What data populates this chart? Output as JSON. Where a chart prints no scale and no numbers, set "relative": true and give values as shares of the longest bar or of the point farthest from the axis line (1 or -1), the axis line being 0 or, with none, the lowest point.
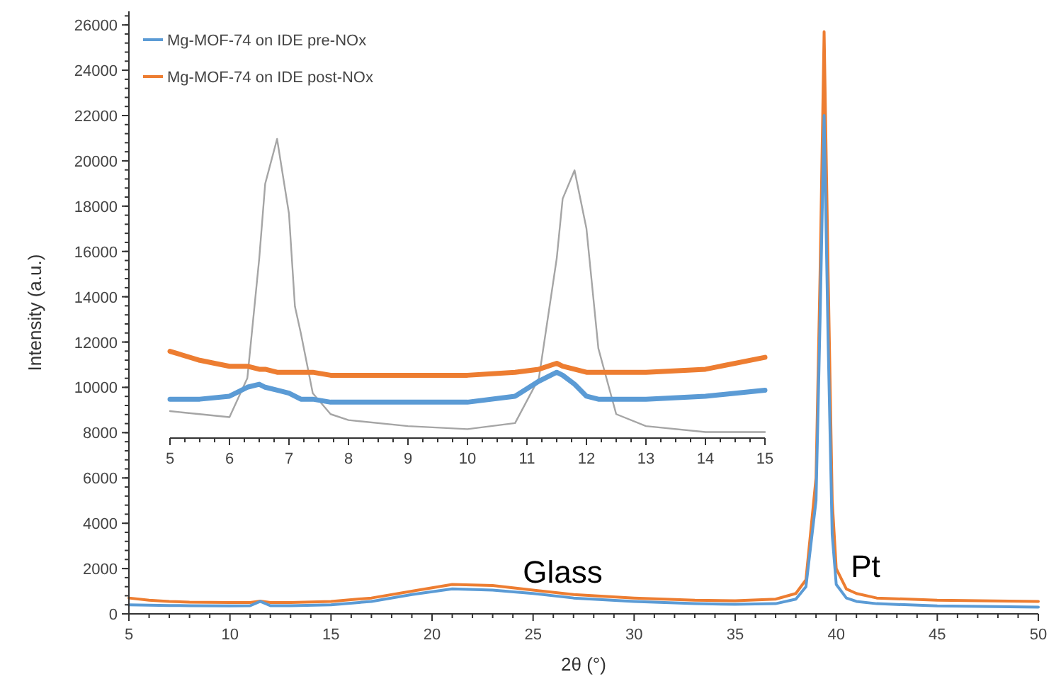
{
  "chart_data": [
    {
      "type": "line",
      "xlabel": "2θ (°)",
      "ylabel": "Intensity (a.u.)",
      "xlim": [
        5,
        50
      ],
      "ylim": [
        0,
        26600
      ],
      "xticks": [
        5,
        10,
        15,
        20,
        25,
        30,
        35,
        40,
        45,
        50
      ],
      "yticks": [
        0,
        2000,
        4000,
        6000,
        8000,
        10000,
        12000,
        14000,
        16000,
        18000,
        20000,
        22000,
        24000,
        26000
      ],
      "legend": "top left",
      "grid": false,
      "marker": "none",
      "line_style": "solid",
      "x": [
        5,
        6,
        7,
        8,
        10,
        11,
        11.5,
        12,
        13,
        15,
        17,
        19,
        21,
        23,
        25,
        27,
        30,
        33,
        35,
        37,
        38,
        38.5,
        39,
        39.2,
        39.4,
        39.6,
        39.8,
        40,
        40.5,
        41,
        42,
        45,
        50
      ],
      "series": [
        {
          "name": "Mg-MOF-74 on IDE pre-NOx",
          "color": "#5b9bd5",
          "values": [
            400,
            380,
            370,
            360,
            350,
            360,
            550,
            360,
            360,
            400,
            550,
            850,
            1100,
            1050,
            900,
            700,
            550,
            450,
            420,
            450,
            650,
            1200,
            5000,
            13000,
            22000,
            12000,
            3500,
            1300,
            700,
            550,
            450,
            350,
            300
          ]
        },
        {
          "name": "Mg-MOF-74 on IDE post-NOx",
          "color": "#ed7d31",
          "values": [
            700,
            600,
            550,
            520,
            500,
            500,
            560,
            500,
            500,
            550,
            700,
            1000,
            1300,
            1250,
            1050,
            850,
            700,
            600,
            580,
            650,
            900,
            1500,
            6000,
            15000,
            25700,
            15000,
            5000,
            2000,
            1100,
            900,
            700,
            600,
            550
          ]
        }
      ],
      "annotations": [
        "Glass",
        "Pt"
      ]
    },
    {
      "type": "line",
      "relative": true,
      "xlim": [
        5,
        15
      ],
      "xticks": [
        5,
        6,
        7,
        8,
        9,
        10,
        11,
        12,
        13,
        14,
        15
      ],
      "tick_labels": "x",
      "marker": "none",
      "line_style": "solid",
      "x": [
        5,
        5.5,
        6,
        6.3,
        6.5,
        6.6,
        6.8,
        7,
        7.1,
        7.2,
        7.4,
        7.7,
        8,
        9,
        10,
        10.8,
        11.2,
        11.5,
        11.6,
        11.8,
        12,
        12.2,
        12.5,
        13,
        14,
        15
      ],
      "series": [
        {
          "color": "#a5a5a5",
          "values": [
            0.09,
            0.08,
            0.07,
            0.2,
            0.6,
            0.85,
            1,
            0.75,
            0.44,
            0.35,
            0.15,
            0.08,
            0.06,
            0.04,
            0.03,
            0.05,
            0.2,
            0.6,
            0.8,
            0.895,
            0.7,
            0.3,
            0.08,
            0.04,
            0.02,
            0.02
          ]
        },
        {
          "color": "#ed7d31",
          "values": [
            0.29,
            0.26,
            0.24,
            0.24,
            0.23,
            0.23,
            0.22,
            0.22,
            0.22,
            0.22,
            0.22,
            0.21,
            0.21,
            0.21,
            0.21,
            0.22,
            0.23,
            0.25,
            0.24,
            0.23,
            0.22,
            0.22,
            0.22,
            0.22,
            0.23,
            0.27
          ]
        },
        {
          "color": "#5b9bd5",
          "values": [
            0.13,
            0.13,
            0.14,
            0.17,
            0.18,
            0.17,
            0.16,
            0.15,
            0.14,
            0.13,
            0.13,
            0.12,
            0.12,
            0.12,
            0.12,
            0.14,
            0.19,
            0.22,
            0.21,
            0.18,
            0.14,
            0.13,
            0.13,
            0.13,
            0.14,
            0.16
          ]
        }
      ]
    }
  ]
}
